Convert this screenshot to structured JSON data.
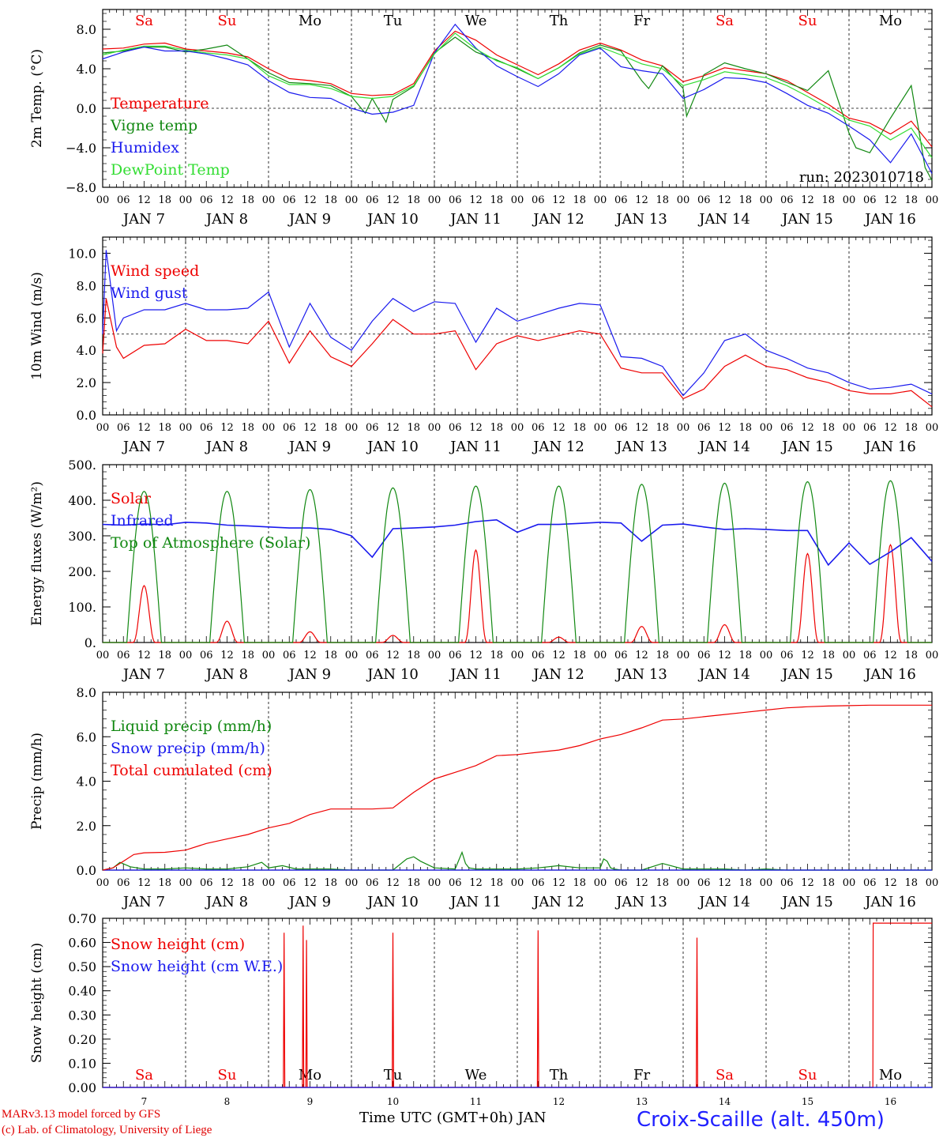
{
  "run_label": "run: 2023010718",
  "days": {
    "weekday_labels": [
      "Sa",
      "Su",
      "Mo",
      "Tu",
      "We",
      "Th",
      "Fr",
      "Sa",
      "Su",
      "Mo"
    ],
    "weekend_flags": [
      true,
      true,
      false,
      false,
      false,
      false,
      false,
      true,
      true,
      false
    ],
    "date_labels": [
      "JAN  7",
      "JAN  8",
      "JAN  9",
      "JAN 10",
      "JAN 11",
      "JAN 12",
      "JAN 13",
      "JAN 14",
      "JAN 15",
      "JAN 16"
    ],
    "day_numbers": [
      "7",
      "8",
      "9",
      "10",
      "11",
      "12",
      "13",
      "14",
      "15",
      "16"
    ],
    "hour_labels": [
      "00",
      "06",
      "12",
      "18"
    ],
    "final_hour_label": "00"
  },
  "footer": {
    "model_line": "MARv3.13 model forced by GFS",
    "credit_line": "(c) Lab. of Climatology, University of Liege",
    "x_axis_label": "Time UTC (GMT+0h) JAN",
    "station": "Croix-Scaille (alt. 450m)"
  },
  "colors": {
    "red": "#ee0000",
    "green": "#118811",
    "blue": "#1a1aee",
    "lightgreen": "#33dd33",
    "grid": "#000000"
  },
  "chart_data": [
    {
      "type": "line",
      "id": "temp",
      "ylabel": "2m Temp. (°C)",
      "ylim": [
        -8,
        10
      ],
      "yticks": [
        8,
        4,
        0,
        -4,
        -8
      ],
      "ytick_labels": [
        "8.0",
        "4.0",
        "0.0",
        "−4.0",
        "−8.0"
      ],
      "hline": 0,
      "x_unit": "hours since 2023-01-07 00 UTC",
      "series": [
        {
          "name": "Temperature",
          "color": "red",
          "x": [
            0,
            6,
            12,
            18,
            24,
            30,
            36,
            42,
            48,
            54,
            60,
            66,
            72,
            78,
            84,
            90,
            96,
            102,
            108,
            114,
            120,
            126,
            132,
            138,
            144,
            150,
            156,
            162,
            168,
            174,
            180,
            186,
            192,
            198,
            204,
            210,
            216,
            222,
            228,
            234,
            240
          ],
          "y": [
            6.0,
            6.1,
            6.5,
            6.6,
            6.0,
            5.8,
            5.6,
            5.2,
            4.0,
            3.0,
            2.8,
            2.5,
            1.5,
            1.3,
            1.4,
            2.5,
            5.8,
            7.8,
            6.9,
            5.4,
            4.4,
            3.4,
            4.5,
            5.9,
            6.6,
            5.9,
            4.9,
            4.3,
            2.7,
            3.3,
            4.1,
            3.8,
            3.5,
            2.8,
            1.6,
            0.4,
            -1.0,
            -1.5,
            -2.6,
            -1.3,
            -3.9
          ]
        },
        {
          "name": "Vigne temp",
          "color": "green",
          "x": [
            0,
            6,
            12,
            18,
            24,
            30,
            36,
            42,
            48,
            54,
            60,
            66,
            72,
            76,
            78,
            82,
            84,
            90,
            96,
            102,
            108,
            114,
            120,
            126,
            132,
            138,
            144,
            150,
            156,
            158,
            162,
            168,
            169,
            174,
            180,
            186,
            192,
            198,
            204,
            210,
            216,
            218,
            222,
            228,
            234,
            238,
            240
          ],
          "y": [
            5.6,
            5.8,
            6.2,
            6.2,
            5.7,
            6.0,
            6.4,
            5.0,
            3.6,
            2.6,
            2.5,
            2.3,
            1.2,
            -0.5,
            1.0,
            -1.4,
            0.9,
            2.2,
            5.6,
            7.2,
            5.7,
            4.9,
            4.0,
            3.0,
            4.1,
            5.6,
            6.4,
            5.8,
            2.8,
            2.0,
            4.3,
            2.0,
            -0.8,
            3.4,
            4.6,
            4.0,
            3.5,
            2.6,
            1.8,
            3.8,
            -2.5,
            -4.0,
            -4.5,
            -1.0,
            2.3,
            -6.0,
            -7.3
          ]
        },
        {
          "name": "Humidex",
          "color": "blue",
          "x": [
            0,
            6,
            12,
            18,
            24,
            30,
            36,
            42,
            48,
            54,
            60,
            66,
            72,
            78,
            84,
            90,
            96,
            102,
            108,
            114,
            120,
            126,
            132,
            138,
            144,
            150,
            156,
            162,
            168,
            174,
            180,
            186,
            192,
            198,
            204,
            210,
            216,
            222,
            228,
            234,
            240
          ],
          "y": [
            5.0,
            5.7,
            6.2,
            5.8,
            5.8,
            5.5,
            5.0,
            4.4,
            2.8,
            1.6,
            1.1,
            1.0,
            0.0,
            -0.6,
            -0.4,
            0.3,
            5.6,
            8.5,
            6.1,
            4.3,
            3.2,
            2.2,
            3.5,
            5.4,
            6.1,
            4.2,
            3.8,
            3.5,
            1.0,
            1.9,
            3.1,
            3.0,
            2.6,
            1.5,
            0.3,
            -0.5,
            -1.8,
            -3.2,
            -5.5,
            -2.6,
            -6.6
          ]
        },
        {
          "name": "DewPoint Temp",
          "color": "lightgreen",
          "x": [
            0,
            6,
            12,
            18,
            24,
            30,
            36,
            42,
            48,
            54,
            60,
            66,
            72,
            78,
            84,
            90,
            96,
            102,
            108,
            114,
            120,
            126,
            132,
            138,
            144,
            150,
            156,
            162,
            168,
            174,
            180,
            186,
            192,
            198,
            204,
            210,
            216,
            222,
            228,
            234,
            240
          ],
          "y": [
            5.4,
            5.9,
            6.3,
            6.3,
            5.9,
            5.6,
            5.4,
            5.0,
            3.3,
            2.4,
            2.4,
            2.0,
            1.2,
            1.0,
            1.2,
            2.3,
            5.5,
            7.6,
            6.0,
            4.8,
            4.1,
            3.0,
            4.1,
            5.5,
            6.2,
            5.4,
            4.5,
            4.0,
            2.3,
            2.9,
            3.7,
            3.4,
            3.1,
            2.3,
            1.2,
            0.0,
            -1.2,
            -1.8,
            -3.2,
            -2.0,
            -5.0
          ]
        }
      ]
    },
    {
      "type": "line",
      "id": "wind",
      "ylabel": "10m Wind (m/s)",
      "ylim": [
        0,
        11
      ],
      "yticks": [
        10,
        8,
        6,
        4,
        2,
        0
      ],
      "ytick_labels": [
        "10.0",
        "8.0",
        "6.0",
        "4.0",
        "2.0",
        "0.0"
      ],
      "hline": 5,
      "series": [
        {
          "name": "Wind speed",
          "color": "red",
          "x": [
            0,
            1,
            4,
            6,
            12,
            18,
            24,
            30,
            36,
            42,
            48,
            54,
            60,
            66,
            72,
            78,
            84,
            90,
            96,
            102,
            108,
            114,
            120,
            126,
            132,
            138,
            144,
            150,
            156,
            162,
            168,
            174,
            180,
            186,
            192,
            198,
            204,
            210,
            216,
            222,
            228,
            234,
            240
          ],
          "y": [
            3.8,
            7.2,
            4.2,
            3.5,
            4.3,
            4.4,
            5.3,
            4.6,
            4.6,
            4.4,
            5.8,
            3.2,
            5.2,
            3.6,
            3.0,
            4.4,
            5.9,
            5.0,
            5.0,
            5.2,
            2.8,
            4.4,
            4.9,
            4.6,
            4.9,
            5.2,
            5.0,
            2.9,
            2.6,
            2.6,
            1.0,
            1.6,
            3.0,
            3.7,
            3.0,
            2.8,
            2.3,
            2.0,
            1.5,
            1.3,
            1.3,
            1.5,
            0.5
          ]
        },
        {
          "name": "Wind gust",
          "color": "blue",
          "x": [
            0,
            1,
            4,
            6,
            12,
            18,
            24,
            30,
            36,
            42,
            48,
            54,
            60,
            66,
            72,
            78,
            84,
            90,
            96,
            102,
            108,
            114,
            120,
            126,
            132,
            138,
            144,
            150,
            156,
            162,
            168,
            174,
            180,
            186,
            192,
            198,
            204,
            210,
            216,
            222,
            228,
            234,
            240
          ],
          "y": [
            5.0,
            10.2,
            5.2,
            6.0,
            6.5,
            6.5,
            6.9,
            6.5,
            6.5,
            6.6,
            7.6,
            4.2,
            6.9,
            4.8,
            4.0,
            5.8,
            7.2,
            6.4,
            7.0,
            6.9,
            4.5,
            6.6,
            5.8,
            6.2,
            6.6,
            6.9,
            6.8,
            3.6,
            3.5,
            3.0,
            1.2,
            2.6,
            4.6,
            5.0,
            4.0,
            3.5,
            2.9,
            2.6,
            2.0,
            1.6,
            1.7,
            1.9,
            1.3
          ]
        }
      ]
    },
    {
      "type": "line",
      "id": "flux",
      "ylabel": "Energy fluxes (W/m²)",
      "ylim": [
        0,
        500
      ],
      "yticks": [
        500,
        400,
        300,
        200,
        100,
        0
      ],
      "ytick_labels": [
        "500.",
        "400.",
        "300.",
        "200.",
        "100.",
        "0."
      ],
      "series": [
        {
          "name": "Solar",
          "color": "red",
          "day_peaks": [
            160,
            60,
            30,
            20,
            260,
            15,
            45,
            50,
            250,
            275
          ]
        },
        {
          "name": "Infrared",
          "color": "blue",
          "x": [
            0,
            6,
            12,
            18,
            24,
            30,
            36,
            42,
            48,
            54,
            60,
            66,
            72,
            78,
            84,
            90,
            96,
            102,
            108,
            114,
            120,
            126,
            132,
            138,
            144,
            150,
            156,
            162,
            168,
            174,
            180,
            186,
            192,
            198,
            204,
            210,
            216,
            222,
            228,
            234,
            240
          ],
          "y": [
            332,
            330,
            333,
            331,
            338,
            336,
            330,
            328,
            325,
            322,
            322,
            318,
            300,
            240,
            320,
            322,
            325,
            330,
            340,
            345,
            310,
            332,
            332,
            335,
            338,
            336,
            285,
            330,
            333,
            325,
            318,
            320,
            318,
            315,
            315,
            218,
            280,
            220,
            255,
            295,
            228
          ]
        },
        {
          "name": "Top of Atmosphere (Solar)",
          "color": "green",
          "day_peaks": [
            425,
            425,
            430,
            435,
            440,
            440,
            445,
            448,
            452,
            455
          ]
        }
      ]
    },
    {
      "type": "line",
      "id": "precip",
      "ylabel": "Precip (mm/h)",
      "ylim": [
        0,
        8
      ],
      "yticks": [
        8,
        6,
        4,
        2,
        0
      ],
      "ytick_labels": [
        "8.0",
        "6.0",
        "4.0",
        "2.0",
        "0.0"
      ],
      "series": [
        {
          "name": "Liquid precip (mm/h)",
          "color": "green",
          "x": [
            0,
            3,
            5,
            8,
            12,
            18,
            24,
            30,
            36,
            42,
            46,
            48,
            52,
            56,
            60,
            66,
            72,
            78,
            84,
            88,
            90,
            92,
            96,
            102,
            104,
            105,
            106,
            108,
            114,
            120,
            126,
            132,
            138,
            144,
            145,
            146,
            147,
            148,
            150,
            156,
            162,
            168,
            174,
            180,
            186,
            192,
            198,
            204,
            210,
            216,
            222,
            228,
            234,
            240
          ],
          "y": [
            0,
            0.1,
            0.35,
            0.15,
            0.05,
            0.05,
            0.1,
            0.05,
            0.05,
            0.15,
            0.35,
            0.1,
            0.2,
            0.05,
            0.05,
            0.05,
            0,
            0,
            0,
            0.5,
            0.6,
            0.4,
            0.1,
            0.05,
            0.8,
            0.3,
            0.1,
            0.05,
            0.05,
            0.05,
            0.1,
            0.2,
            0.1,
            0.1,
            0.5,
            0.4,
            0.1,
            0.05,
            0,
            0,
            0.3,
            0.05,
            0.05,
            0.05,
            0,
            0.05,
            0,
            0,
            0,
            0,
            0,
            0,
            0,
            0
          ]
        },
        {
          "name": "Snow precip (mm/h)",
          "color": "blue",
          "y_constant": 0
        },
        {
          "name": "Total cumulated (cm)",
          "color": "red",
          "x": [
            0,
            3,
            6,
            9,
            12,
            18,
            24,
            30,
            36,
            42,
            48,
            54,
            60,
            66,
            72,
            78,
            84,
            90,
            96,
            99,
            102,
            108,
            114,
            120,
            126,
            132,
            138,
            144,
            150,
            156,
            162,
            168,
            174,
            180,
            186,
            192,
            198,
            204,
            210,
            216,
            222,
            228,
            234,
            240
          ],
          "y": [
            0,
            0.1,
            0.4,
            0.7,
            0.78,
            0.8,
            0.9,
            1.2,
            1.4,
            1.6,
            1.9,
            2.1,
            2.5,
            2.75,
            2.75,
            2.75,
            2.8,
            3.5,
            4.1,
            4.25,
            4.4,
            4.7,
            5.15,
            5.2,
            5.3,
            5.4,
            5.6,
            5.9,
            6.1,
            6.4,
            6.75,
            6.8,
            6.9,
            7.0,
            7.1,
            7.2,
            7.3,
            7.35,
            7.38,
            7.4,
            7.42,
            7.42,
            7.42,
            7.42
          ]
        }
      ]
    },
    {
      "type": "line",
      "id": "snow",
      "ylabel": "Snow height (cm)",
      "ylim": [
        0,
        0.7
      ],
      "yticks": [
        0.7,
        0.6,
        0.5,
        0.4,
        0.3,
        0.2,
        0.1,
        0
      ],
      "ytick_labels": [
        "0.70",
        "0.60",
        "0.50",
        "0.40",
        "0.30",
        "0.20",
        "0.10",
        "0.00"
      ],
      "series": [
        {
          "name": "Snow height (cm)",
          "color": "red",
          "spikes": [
            [
              52.5,
              0.64
            ],
            [
              58,
              0.67
            ],
            [
              59,
              0.61
            ],
            [
              84,
              0.64
            ],
            [
              126,
              0.65
            ],
            [
              172,
              0.62
            ]
          ],
          "plateau": {
            "x_start": 223,
            "x_end": 240,
            "y": 0.68
          }
        },
        {
          "name": "Snow height (cm W.E.)",
          "color": "blue",
          "y_constant": 0
        }
      ]
    }
  ]
}
